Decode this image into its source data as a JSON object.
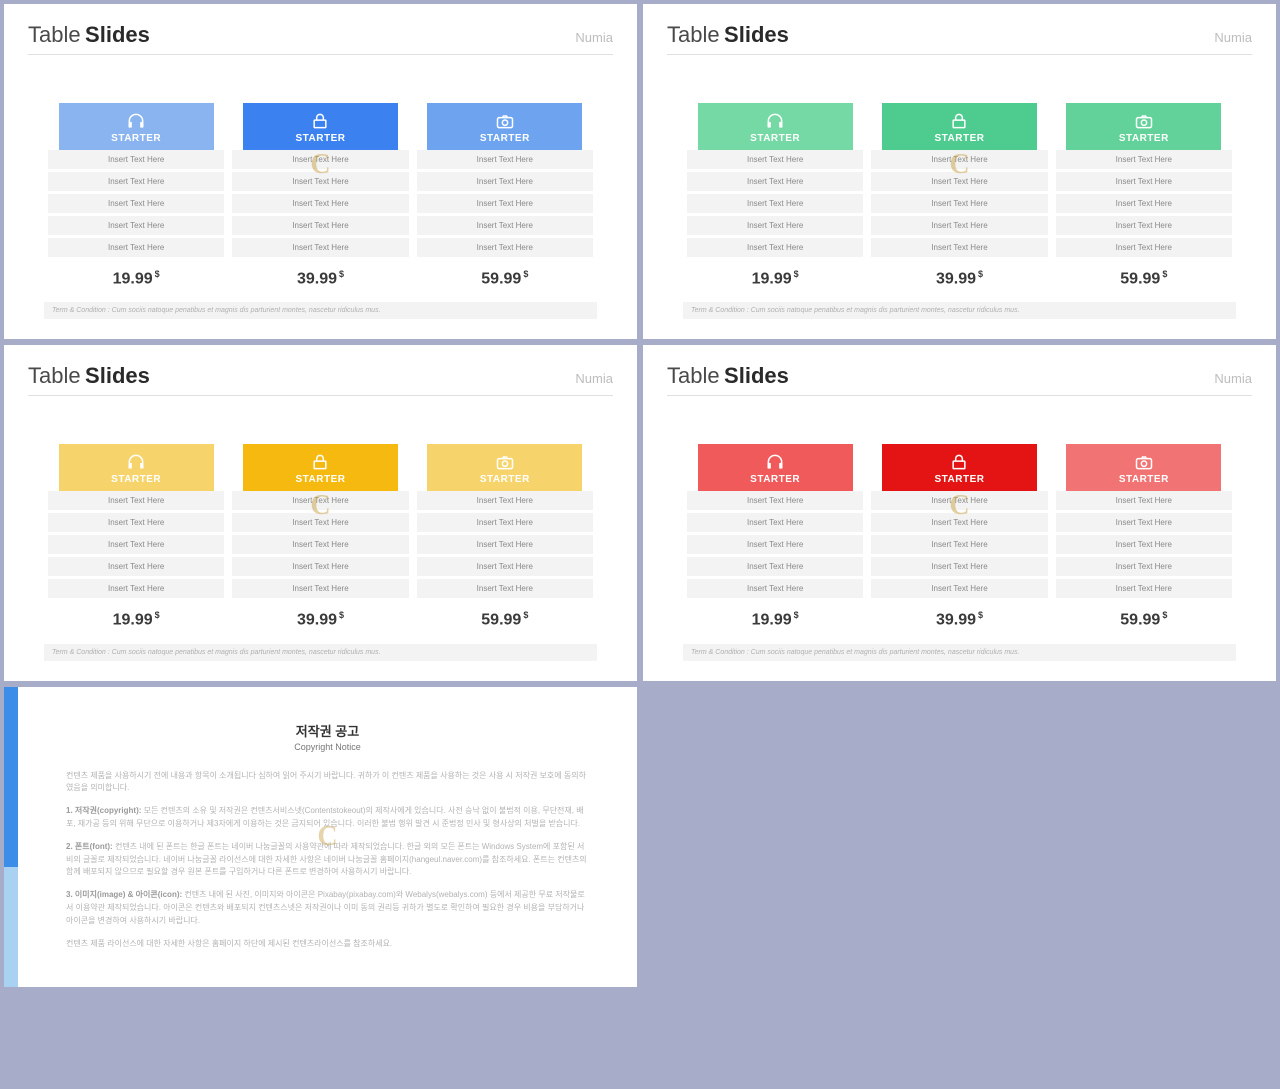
{
  "brand": "Numia",
  "title_light": "Table",
  "title_bold": "Slides",
  "watermark": "C",
  "row_text": "Insert Text Here",
  "card_label": "STARTER",
  "currency": "$",
  "prices": [
    "19.99",
    "39.99",
    "59.99"
  ],
  "terms": "Term & Condition : Cum sociis natoque penatibus et magnis dis parturient montes, nascetur ridiculus mus.",
  "slides": [
    {
      "colors": [
        "#8ab4f0",
        "#3b82f0",
        "#6ea4ef"
      ]
    },
    {
      "colors": [
        "#74d9a5",
        "#4ecb8f",
        "#63d29a"
      ]
    },
    {
      "colors": [
        "#f7d46b",
        "#f5b90f",
        "#f7d46b"
      ]
    },
    {
      "colors": [
        "#f05a5a",
        "#e41414",
        "#f17373"
      ]
    }
  ],
  "copyright": {
    "title": "저작권 공고",
    "subtitle": "Copyright Notice",
    "p1": "컨텐츠 제품을 사용하시기 전에 내용과 항목이 소개됩니다 심하여 읽어 주시기 바랍니다. 귀하가 이 컨텐츠 제품을 사용하는 것은 사용 시 저작권 보호에 동의하였음을 의미합니다.",
    "p2_label": "1. 저작권(copyright):",
    "p2": "모든 컨텐츠의 소유 및 저작권은 컨텐츠서비스넷(Contentstokeout)의 제작사에게 있습니다. 사전 승낙 없이 불법적 이용, 무단전재, 배포, 재가공 등의 위해 무단으로 이용하거나 제3자에게 이용하는 것은 금지되어 있습니다. 이러한 불법 행위 발견 시 준법정 민사 및 형사상의 처벌을 받습니다.",
    "p3_label": "2. 폰트(font):",
    "p3": "컨텐츠 내에 된 폰트는 한글 폰트는 네이버 나눔글꼴의 사용약관에 따라 제작되었습니다. 한글 외의 모든 폰트는 Windows System에 포함된 서비의 글꼴로 제작되었습니다. 네이버 나눔글꼴 라이선스에 대한 자세한 사항은 네이버 나눔글꼴 홈페이지(hangeul.naver.com)를 참조하세요. 폰트는 컨텐츠의 함께 배포되지 않으므로 필요할 경우 원본 폰트를 구입하거나 다른 폰트로 변경하여 사용하시기 바랍니다.",
    "p4_label": "3. 이미지(image) & 아이콘(icon):",
    "p4": "컨텐츠 내에 된 사진, 이미지와 아이콘은 Pixabay(pixabay.com)와 Webalys(webalys.com) 등에서 제공한 무료 저작물로서 이용약관 제작되었습니다. 아이콘은 컨텐츠와 배포되지 컨텐츠스넷은 저작권이나 이미 동의 권리등 귀하가 별도로 확인하여 필요한 경우 비용을 부담하거나 아이콘을 변경하여 사용하시기 바랍니다.",
    "p5": "컨텐츠 제품 라이선스에 대한 자세한 사항은 홈페이지 하단에 제시된 컨텐츠라이선스를 참조하세요."
  }
}
